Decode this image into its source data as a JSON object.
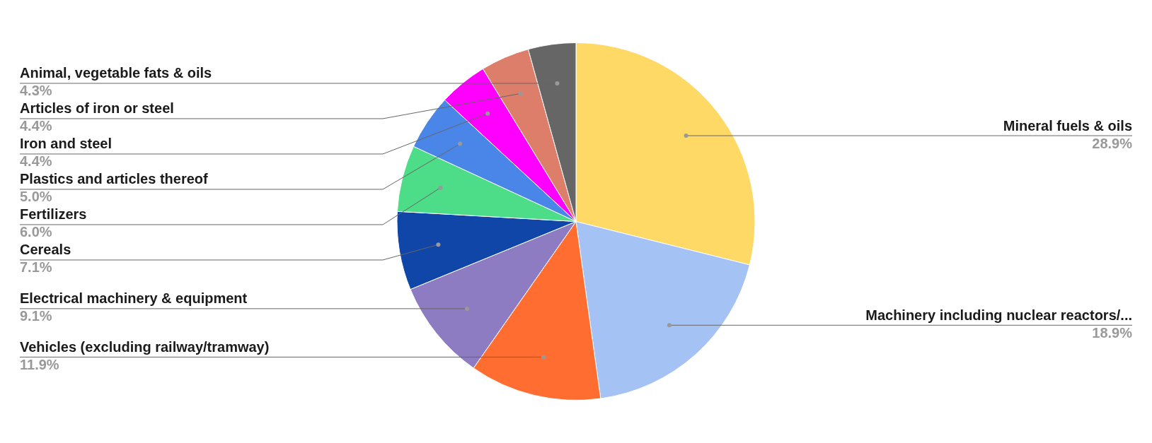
{
  "chart_data": {
    "type": "pie",
    "categories": [
      "Mineral fuels & oils",
      "Machinery including nuclear reactors/...",
      "Vehicles (excluding railway/tramway)",
      "Electrical machinery & equipment",
      "Cereals",
      "Fertilizers",
      "Plastics and articles thereof",
      "Iron and steel",
      "Articles of iron or steel",
      "Animal, vegetable fats & oils"
    ],
    "values": [
      28.9,
      18.9,
      11.9,
      9.1,
      7.1,
      6.0,
      5.0,
      4.4,
      4.4,
      4.3
    ],
    "colors": [
      "#fed966",
      "#a4c2f4",
      "#ff6d31",
      "#8e7cc3",
      "#0f46a8",
      "#4ddc88",
      "#4a86e8",
      "#ff00ff",
      "#dd7e6b",
      "#666666"
    ],
    "value_labels": [
      "28.9%",
      "18.9%",
      "11.9%",
      "9.1%",
      "7.1%",
      "6.0%",
      "5.0%",
      "4.4%",
      "4.4%",
      "4.3%"
    ],
    "legend": false
  }
}
